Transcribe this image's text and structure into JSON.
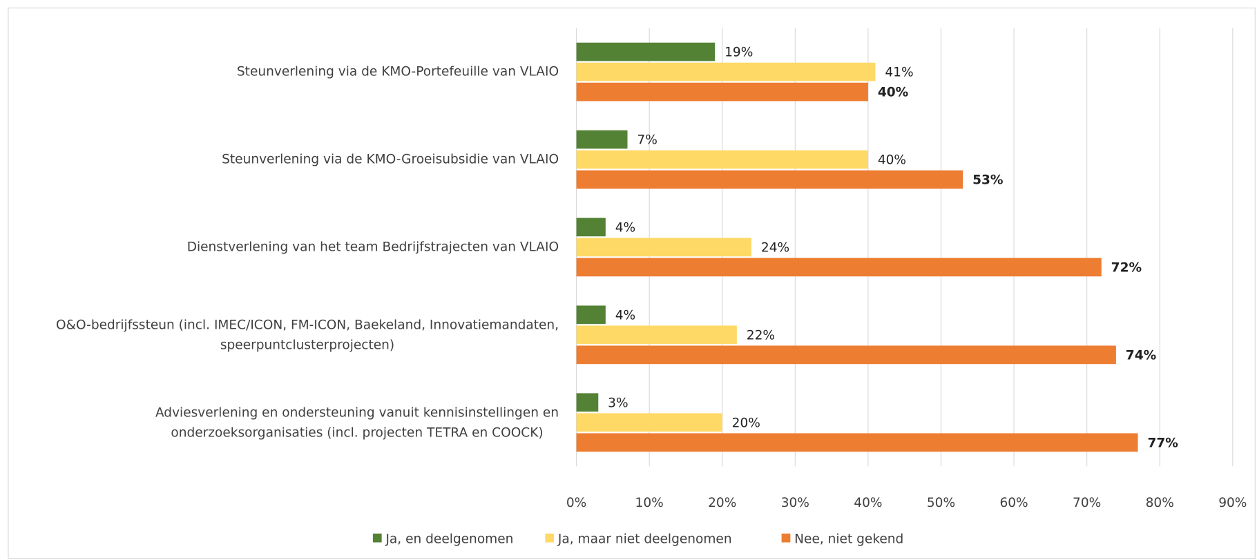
{
  "chart_data": {
    "type": "bar",
    "orientation": "horizontal",
    "categories": [
      "Steunverlening via de KMO-Portefeuille van VLAIO",
      "Steunverlening via de KMO-Groeisubsidie van VLAIO",
      "Dienstverlening van het team Bedrijfstrajecten van VLAIO",
      "O&O-bedrijfssteun (incl. IMEC/ICON, FM-ICON, Baekeland, Innovatiemandaten,\nspeerpuntclusterprojecten)",
      "Adviesverlening en ondersteuning vanuit kennisinstellingen en\nonderzoeksorganisaties (incl. projecten TETRA en COOCK)"
    ],
    "series": [
      {
        "name": "Ja, en deelgenomen",
        "color": "#548235",
        "values": [
          19,
          7,
          4,
          4,
          3
        ],
        "value_labels": [
          "19%",
          "7%",
          "4%",
          "4%",
          "3%"
        ]
      },
      {
        "name": "Ja, maar niet deelgenomen",
        "color": "#ffd966",
        "values": [
          41,
          40,
          24,
          22,
          20
        ],
        "value_labels": [
          "41%",
          "40%",
          "24%",
          "22%",
          "20%"
        ]
      },
      {
        "name": "Nee, niet gekend",
        "color": "#ed7d31",
        "values": [
          40,
          53,
          72,
          74,
          77
        ],
        "value_labels": [
          "40%",
          "53%",
          "72%",
          "74%",
          "77%"
        ]
      }
    ],
    "xlim": [
      0,
      90
    ],
    "xticks": [
      {
        "value": 0,
        "label": "0%"
      },
      {
        "value": 10,
        "label": "10%"
      },
      {
        "value": 20,
        "label": "20%"
      },
      {
        "value": 30,
        "label": "30%"
      },
      {
        "value": 40,
        "label": "40%"
      },
      {
        "value": 50,
        "label": "50%"
      },
      {
        "value": 60,
        "label": "60%"
      },
      {
        "value": 70,
        "label": "70%"
      },
      {
        "value": 80,
        "label": "80%"
      },
      {
        "value": 90,
        "label": "90%"
      }
    ],
    "grid": true,
    "legend": "bottom"
  }
}
